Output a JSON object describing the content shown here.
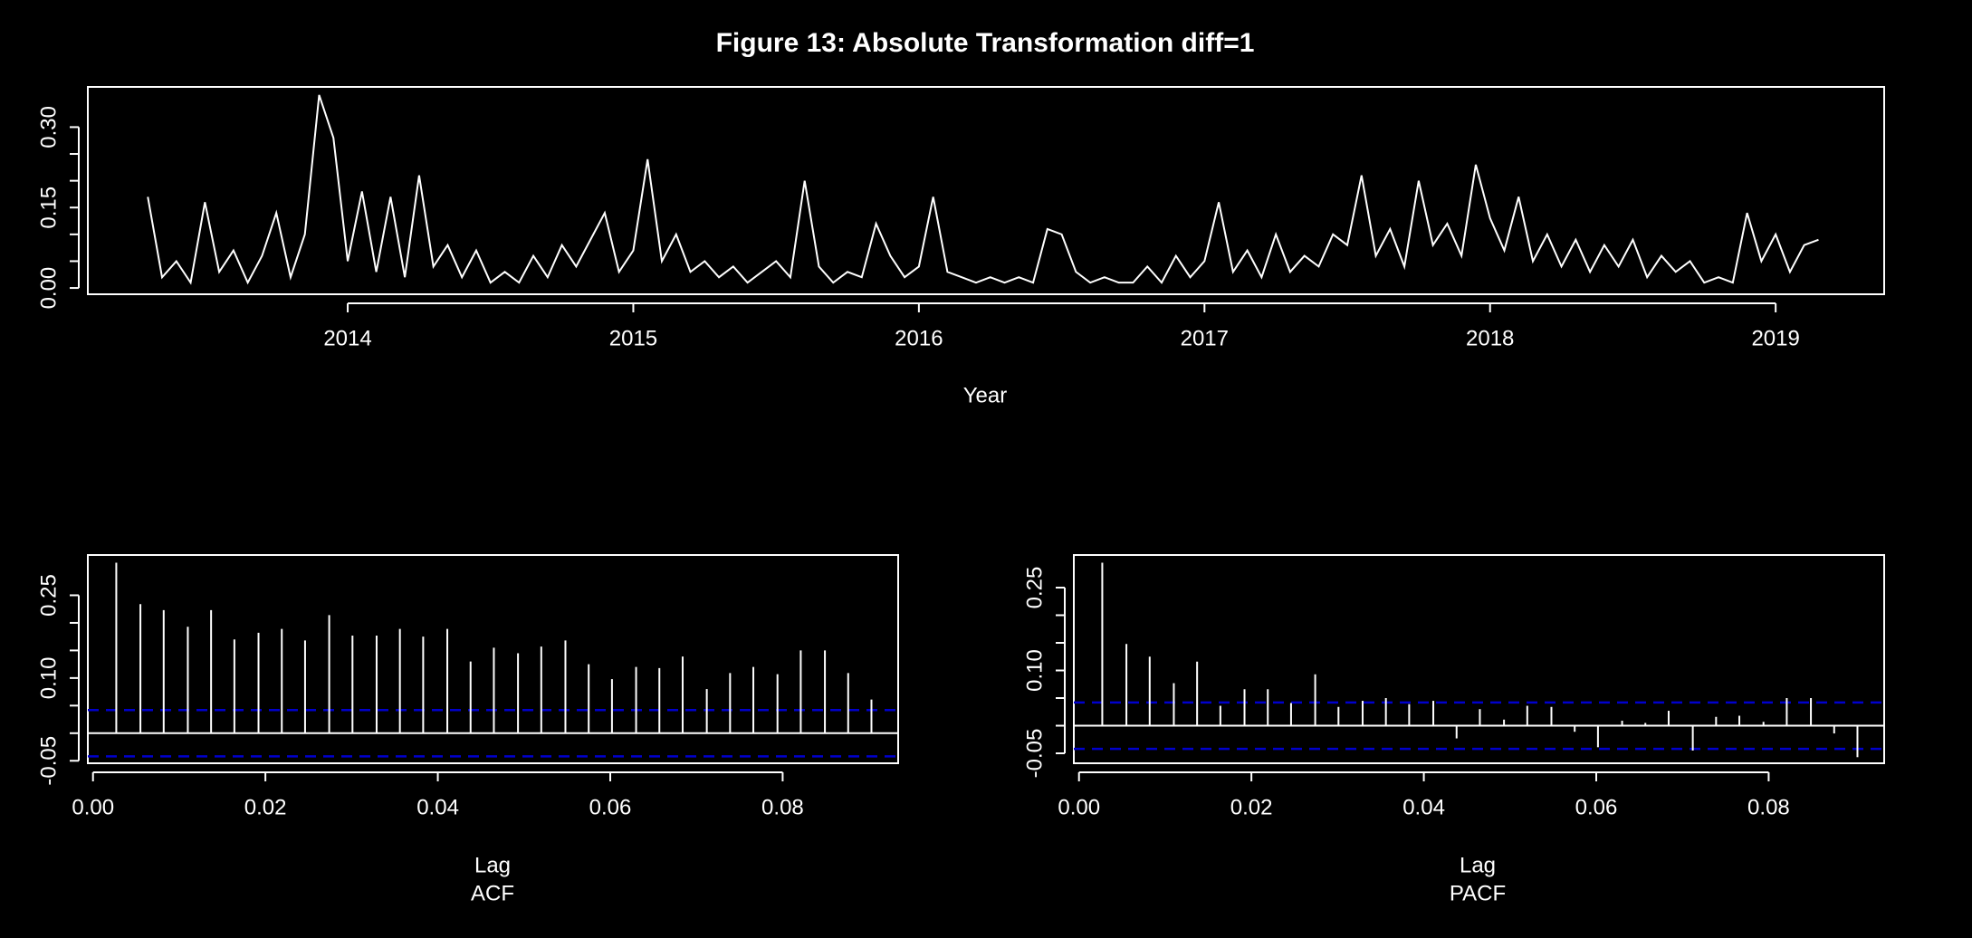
{
  "chart_data": [
    {
      "type": "line",
      "title": "Figure  13: Absolute Transformation diff=1",
      "xlabel": "Year",
      "color": "#ffffff",
      "x": [
        2013.3,
        2013.35,
        2013.4,
        2013.45,
        2013.5,
        2013.55,
        2013.6,
        2013.65,
        2013.7,
        2013.75,
        2013.8,
        2013.85,
        2013.9,
        2013.95,
        2014.0,
        2014.05,
        2014.1,
        2014.15,
        2014.2,
        2014.25,
        2014.3,
        2014.35,
        2014.4,
        2014.45,
        2014.5,
        2014.55,
        2014.6,
        2014.65,
        2014.7,
        2014.75,
        2014.8,
        2014.85,
        2014.9,
        2014.95,
        2015.0,
        2015.05,
        2015.1,
        2015.15,
        2015.2,
        2015.25,
        2015.3,
        2015.35,
        2015.4,
        2015.45,
        2015.5,
        2015.55,
        2015.6,
        2015.65,
        2015.7,
        2015.75,
        2015.8,
        2015.85,
        2015.9,
        2015.95,
        2016.0,
        2016.05,
        2016.1,
        2016.15,
        2016.2,
        2016.25,
        2016.3,
        2016.35,
        2016.4,
        2016.45,
        2016.5,
        2016.55,
        2016.6,
        2016.65,
        2016.7,
        2016.75,
        2016.8,
        2016.85,
        2016.9,
        2016.95,
        2017.0,
        2017.05,
        2017.1,
        2017.15,
        2017.2,
        2017.25,
        2017.3,
        2017.35,
        2017.4,
        2017.45,
        2017.5,
        2017.55,
        2017.6,
        2017.65,
        2017.7,
        2017.75,
        2017.8,
        2017.85,
        2017.9,
        2017.95,
        2018.0,
        2018.05,
        2018.1,
        2018.15,
        2018.2,
        2018.25,
        2018.3,
        2018.35,
        2018.4,
        2018.45,
        2018.5,
        2018.55,
        2018.6,
        2018.65,
        2018.7,
        2018.75,
        2018.8,
        2018.85,
        2018.9,
        2018.95,
        2019.0,
        2019.05,
        2019.1,
        2019.15
      ],
      "values": [
        0.17,
        0.02,
        0.05,
        0.01,
        0.16,
        0.03,
        0.07,
        0.01,
        0.06,
        0.14,
        0.02,
        0.1,
        0.36,
        0.28,
        0.05,
        0.18,
        0.03,
        0.17,
        0.02,
        0.21,
        0.04,
        0.08,
        0.02,
        0.07,
        0.01,
        0.03,
        0.01,
        0.06,
        0.02,
        0.08,
        0.04,
        0.09,
        0.14,
        0.03,
        0.07,
        0.24,
        0.05,
        0.1,
        0.03,
        0.05,
        0.02,
        0.04,
        0.01,
        0.03,
        0.05,
        0.02,
        0.2,
        0.04,
        0.01,
        0.03,
        0.02,
        0.12,
        0.06,
        0.02,
        0.04,
        0.17,
        0.03,
        0.02,
        0.01,
        0.02,
        0.01,
        0.02,
        0.01,
        0.11,
        0.1,
        0.03,
        0.01,
        0.02,
        0.01,
        0.01,
        0.04,
        0.01,
        0.06,
        0.02,
        0.05,
        0.16,
        0.03,
        0.07,
        0.02,
        0.1,
        0.03,
        0.06,
        0.04,
        0.1,
        0.08,
        0.21,
        0.06,
        0.11,
        0.04,
        0.2,
        0.08,
        0.12,
        0.06,
        0.23,
        0.13,
        0.07,
        0.17,
        0.05,
        0.1,
        0.04,
        0.09,
        0.03,
        0.08,
        0.04,
        0.09,
        0.02,
        0.06,
        0.03,
        0.05,
        0.01,
        0.02,
        0.01,
        0.14,
        0.05,
        0.1,
        0.03,
        0.08,
        0.09
      ],
      "xlim": [
        2013.09,
        2019.38
      ],
      "ylim": [
        -0.0117,
        0.375
      ],
      "xticks": [
        2014,
        2015,
        2016,
        2017,
        2018,
        2019
      ],
      "yticks": [
        {
          "value": 0,
          "label": "0.00"
        },
        {
          "value": 0.05,
          "label": null
        },
        {
          "value": 0.1,
          "label": null
        },
        {
          "value": 0.15,
          "label": "0.15"
        },
        {
          "value": 0.2,
          "label": null
        },
        {
          "value": 0.25,
          "label": null
        },
        {
          "value": 0.3,
          "label": "0.30"
        }
      ]
    },
    {
      "type": "acf",
      "xlabel": "Lag",
      "subtitle": "ACF",
      "color": "#ffffff",
      "ci": 0.042,
      "ci_color": "#0000cc",
      "x": [
        0.0027,
        0.0055,
        0.0082,
        0.011,
        0.0137,
        0.0164,
        0.0192,
        0.0219,
        0.0246,
        0.0274,
        0.0301,
        0.0329,
        0.0356,
        0.0383,
        0.0411,
        0.0438,
        0.0465,
        0.0493,
        0.052,
        0.0548,
        0.0575,
        0.0602,
        0.063,
        0.0657,
        0.0684,
        0.0712,
        0.0739,
        0.0766,
        0.0794,
        0.0821,
        0.0849,
        0.0876,
        0.0903
      ],
      "values": [
        0.309,
        0.234,
        0.223,
        0.193,
        0.223,
        0.17,
        0.182,
        0.189,
        0.168,
        0.214,
        0.177,
        0.177,
        0.189,
        0.175,
        0.189,
        0.13,
        0.155,
        0.145,
        0.157,
        0.168,
        0.125,
        0.098,
        0.12,
        0.118,
        0.139,
        0.08,
        0.109,
        0.12,
        0.107,
        0.15,
        0.15,
        0.109,
        0.061
      ],
      "xlim": [
        -0.0006,
        0.0934
      ],
      "ylim": [
        -0.0545,
        0.323
      ],
      "xticks": [
        {
          "value": 0,
          "label": "0.00"
        },
        {
          "value": 0.02,
          "label": "0.02"
        },
        {
          "value": 0.04,
          "label": "0.04"
        },
        {
          "value": 0.06,
          "label": "0.06"
        },
        {
          "value": 0.08,
          "label": "0.08"
        }
      ],
      "yticks": [
        {
          "value": -0.05,
          "label": "-0.05"
        },
        {
          "value": 0,
          "label": null
        },
        {
          "value": 0.05,
          "label": null
        },
        {
          "value": 0.1,
          "label": "0.10"
        },
        {
          "value": 0.15,
          "label": null
        },
        {
          "value": 0.2,
          "label": null
        },
        {
          "value": 0.25,
          "label": "0.25"
        }
      ]
    },
    {
      "type": "acf",
      "xlabel": "Lag",
      "subtitle": "PACF",
      "color": "#ffffff",
      "ci": 0.042,
      "ci_color": "#0000cc",
      "x": [
        0.0027,
        0.0055,
        0.0082,
        0.011,
        0.0137,
        0.0164,
        0.0192,
        0.0219,
        0.0246,
        0.0274,
        0.0301,
        0.0329,
        0.0356,
        0.0383,
        0.0411,
        0.0438,
        0.0465,
        0.0493,
        0.052,
        0.0548,
        0.0575,
        0.0602,
        0.063,
        0.0657,
        0.0684,
        0.0712,
        0.0739,
        0.0766,
        0.0794,
        0.0821,
        0.0849,
        0.0876,
        0.0903
      ],
      "values": [
        0.295,
        0.148,
        0.125,
        0.077,
        0.116,
        0.036,
        0.066,
        0.066,
        0.041,
        0.093,
        0.034,
        0.045,
        0.05,
        0.039,
        0.045,
        -0.023,
        0.03,
        0.011,
        0.036,
        0.034,
        -0.011,
        -0.039,
        0.009,
        0.005,
        0.027,
        -0.045,
        0.016,
        0.018,
        0.007,
        0.05,
        0.05,
        -0.014,
        -0.057
      ],
      "xlim": [
        -0.0006,
        0.0934
      ],
      "ylim": [
        -0.068,
        0.309
      ],
      "xticks": [
        {
          "value": 0,
          "label": "0.00"
        },
        {
          "value": 0.02,
          "label": "0.02"
        },
        {
          "value": 0.04,
          "label": "0.04"
        },
        {
          "value": 0.06,
          "label": "0.06"
        },
        {
          "value": 0.08,
          "label": "0.08"
        }
      ],
      "yticks": [
        {
          "value": -0.05,
          "label": "-0.05"
        },
        {
          "value": 0,
          "label": null
        },
        {
          "value": 0.05,
          "label": null
        },
        {
          "value": 0.1,
          "label": "0.10"
        },
        {
          "value": 0.15,
          "label": null
        },
        {
          "value": 0.2,
          "label": null
        },
        {
          "value": 0.25,
          "label": "0.25"
        }
      ]
    }
  ]
}
